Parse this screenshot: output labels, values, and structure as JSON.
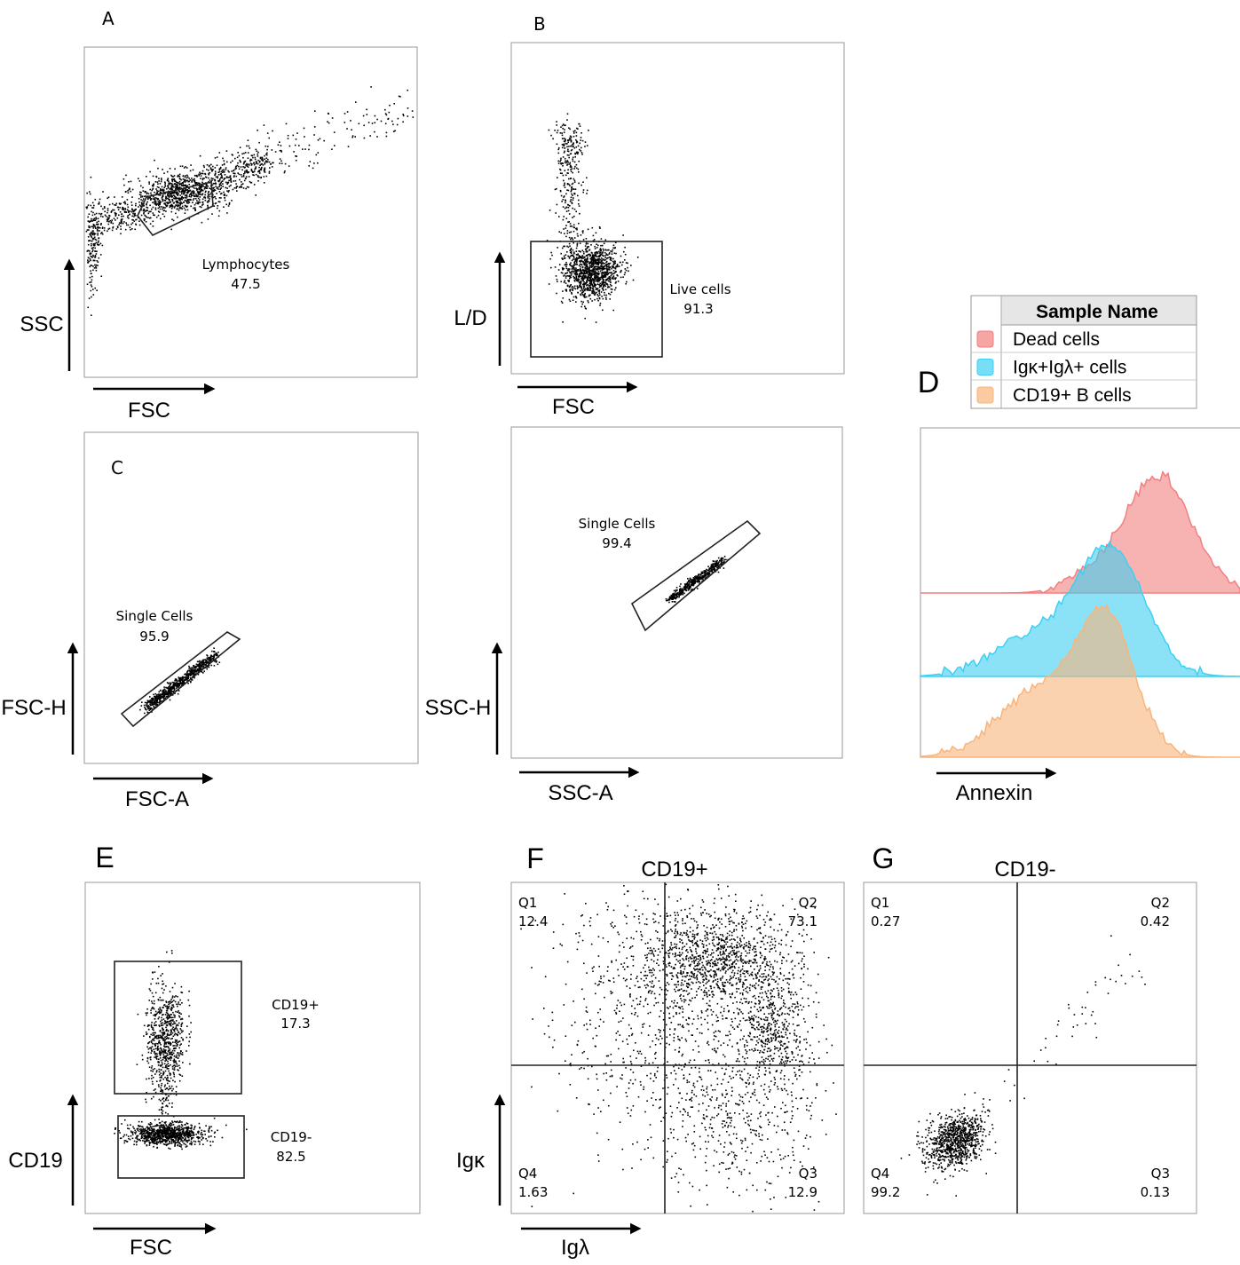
{
  "panels": [
    {
      "letter": "A",
      "x_label": "FSC",
      "y_label": "SSC",
      "gates": [
        {
          "name": "Lymphocytes",
          "value": 47.5
        }
      ]
    },
    {
      "letter": "B",
      "x_label": "FSC",
      "y_label": "L/D",
      "gates": [
        {
          "name": "Live cells",
          "value": 91.3
        }
      ]
    },
    {
      "letter": "C",
      "x_label": "FSC-A",
      "y_label": "FSC-H",
      "gates": [
        {
          "name": "Single Cells",
          "value": 95.9
        }
      ]
    },
    {
      "x_label": "SSC-A",
      "y_label": "SSC-H",
      "gates": [
        {
          "name": "Single Cells",
          "value": 99.4
        }
      ]
    },
    {
      "letter": "D",
      "x_label": "Annexin",
      "legend": {
        "title": "Sample Name",
        "entries": [
          {
            "name": "Dead cells",
            "color": "#f27f7f"
          },
          {
            "name": "Igκ+Igλ+ cells",
            "color": "#3ecff2"
          },
          {
            "name": "CD19+ B cells",
            "color": "#f9b47a"
          }
        ]
      }
    },
    {
      "letter": "E",
      "x_label": "FSC",
      "y_label": "CD19",
      "gates": [
        {
          "name": "CD19+",
          "value": 17.3
        },
        {
          "name": "CD19-",
          "value": 82.5
        }
      ]
    },
    {
      "letter": "F",
      "title": "CD19+",
      "x_label": "Igλ",
      "y_label": "Igκ",
      "quadrants": [
        {
          "name": "Q1",
          "value": 12.4
        },
        {
          "name": "Q2",
          "value": 73.1
        },
        {
          "name": "Q3",
          "value": 12.9
        },
        {
          "name": "Q4",
          "value": 1.63
        }
      ]
    },
    {
      "letter": "G",
      "title": "CD19-",
      "quadrants": [
        {
          "name": "Q1",
          "value": 0.27
        },
        {
          "name": "Q2",
          "value": 0.42
        },
        {
          "name": "Q3",
          "value": 0.13
        },
        {
          "name": "Q4",
          "value": 99.2
        }
      ]
    }
  ]
}
